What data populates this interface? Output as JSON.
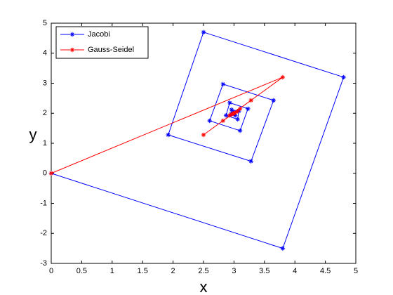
{
  "chart_data": {
    "type": "line",
    "x_label": "x",
    "y_label": "y",
    "xlim": [
      0,
      5
    ],
    "ylim": [
      -3,
      5
    ],
    "xticks": [
      0,
      0.5,
      1,
      1.5,
      2,
      2.5,
      3,
      3.5,
      4,
      4.5,
      5
    ],
    "yticks": [
      -3,
      -2,
      -1,
      0,
      1,
      2,
      3,
      4,
      5
    ],
    "grid": false,
    "legend": "upper-left",
    "marker": "*",
    "series": [
      {
        "name": "Jacobi",
        "color": "#0000ff",
        "x": [
          0,
          3.8,
          4.8,
          2.5,
          1.92,
          3.28,
          3.65,
          2.82,
          2.6,
          3.1,
          3.23,
          2.93,
          2.87,
          3.06,
          3.08,
          2.96,
          2.95,
          3.02,
          3.02,
          2.99,
          2.99,
          3.0,
          3.0
        ],
        "values": [
          0,
          -2.5,
          3.2,
          4.7,
          1.28,
          0.4,
          2.43,
          2.97,
          1.75,
          1.42,
          2.15,
          2.35,
          1.93,
          1.8,
          2.07,
          2.12,
          1.97,
          1.93,
          2.02,
          2.04,
          1.99,
          1.98,
          2.0
        ]
      },
      {
        "name": "Gauss-Seidel",
        "color": "#ff0000",
        "x": [
          0,
          3.8,
          2.5,
          3.28,
          2.82,
          3.1,
          2.93,
          3.06,
          2.96,
          3.02,
          2.99,
          3.0
        ],
        "values": [
          0,
          3.2,
          1.28,
          2.43,
          1.75,
          2.15,
          1.93,
          2.07,
          1.97,
          2.02,
          1.99,
          2.0
        ]
      }
    ]
  }
}
